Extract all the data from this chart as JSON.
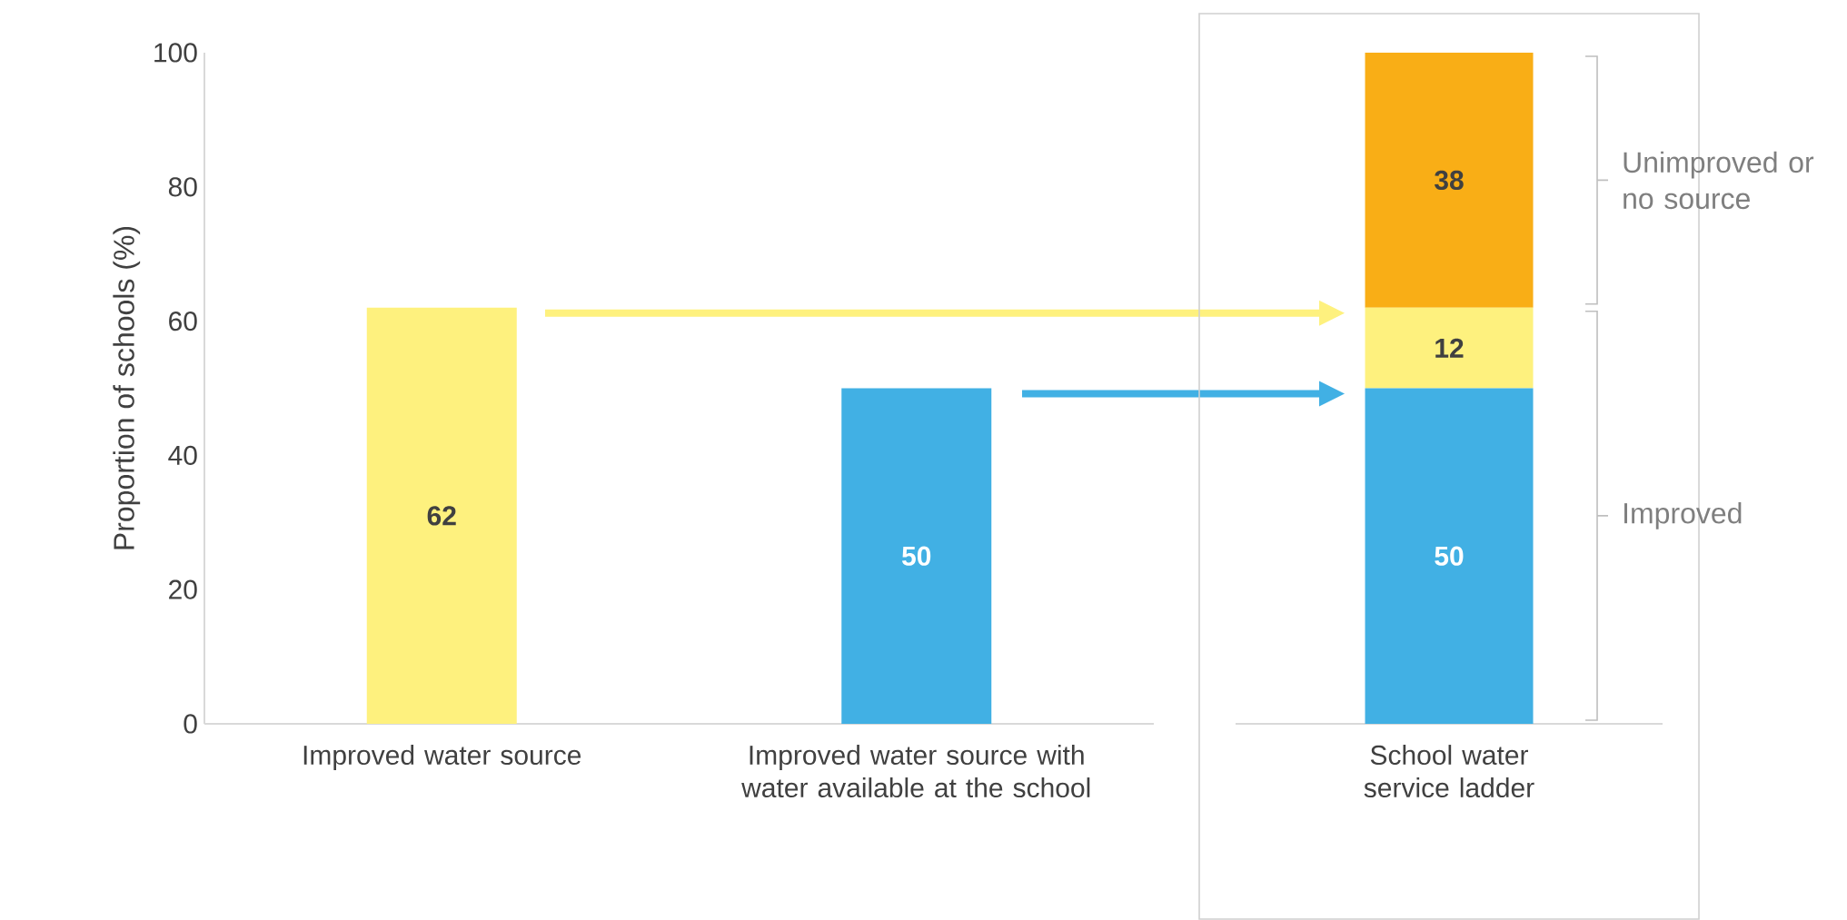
{
  "chart_data": [
    {
      "type": "bar",
      "categories": [
        "Improved water source",
        "Improved water source with water available at the school"
      ],
      "values": [
        62,
        50
      ],
      "colors": [
        "#fef17e",
        "#41b0e4"
      ],
      "ylabel": "Proportion of schools (%)",
      "ylim": [
        0,
        100
      ],
      "yticks": [
        0,
        20,
        40,
        60,
        80,
        100
      ],
      "data_labels": true
    },
    {
      "type": "bar",
      "stacked": true,
      "categories": [
        "School water service ladder"
      ],
      "series": [
        {
          "color": "#41b0e4",
          "values": [
            50
          ]
        },
        {
          "color": "#fef17e",
          "values": [
            12
          ]
        },
        {
          "color": "#f9ae16",
          "values": [
            38
          ]
        }
      ],
      "ylim": [
        0,
        100
      ],
      "tick_labels": "x",
      "data_labels": true,
      "annotations": [
        "Unimproved or no source",
        "Improved"
      ]
    }
  ]
}
